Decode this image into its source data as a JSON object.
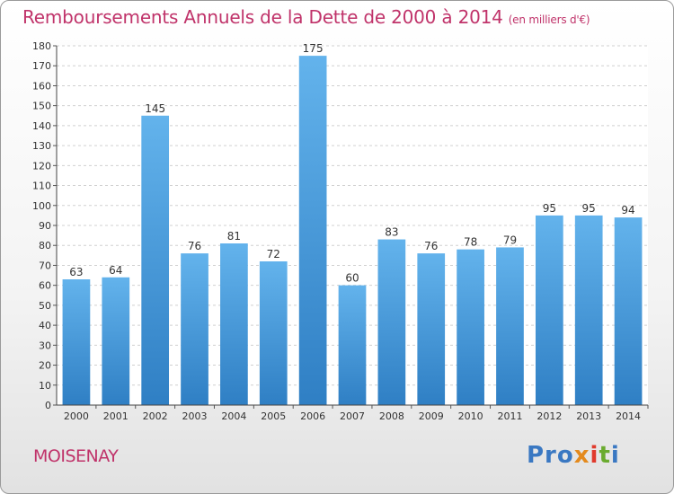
{
  "header": {
    "title": "Remboursements Annuels de la Dette de 2000 à 2014",
    "unit": "(en milliers d'€)"
  },
  "commune": "MOISENAY",
  "logo": {
    "parts": [
      "Pro",
      "x",
      "i",
      "t",
      "i"
    ]
  },
  "chart_data": {
    "type": "bar",
    "title": "Remboursements Annuels de la Dette de 2000 à 2014",
    "subtitle": "(en milliers d'€)",
    "categories": [
      "2000",
      "2001",
      "2002",
      "2003",
      "2004",
      "2005",
      "2006",
      "2007",
      "2008",
      "2009",
      "2010",
      "2011",
      "2012",
      "2013",
      "2014"
    ],
    "values": [
      63,
      64,
      145,
      76,
      81,
      72,
      175,
      60,
      83,
      76,
      78,
      79,
      95,
      95,
      94
    ],
    "ylim": [
      0,
      180
    ],
    "yticks": [
      0,
      10,
      20,
      30,
      40,
      50,
      60,
      70,
      80,
      90,
      100,
      110,
      120,
      130,
      140,
      150,
      160,
      170,
      180
    ],
    "grid": true,
    "colors": {
      "bar_light": "#63b3ec",
      "bar_dark": "#2f7fc4",
      "text": "#c0336a",
      "grid": "#d0d0d0"
    }
  }
}
